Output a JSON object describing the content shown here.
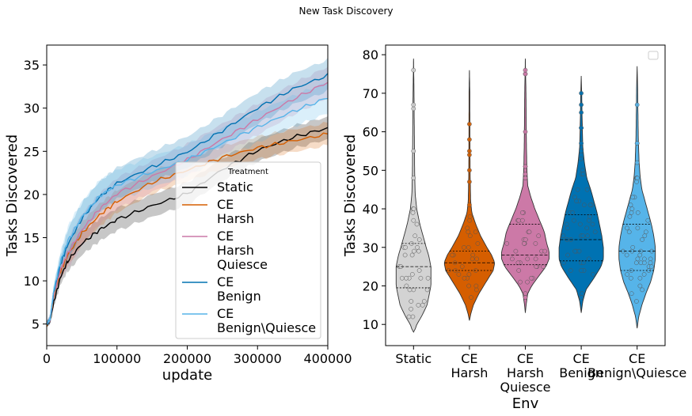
{
  "figure_title": "New Task Discovery",
  "chart_data": [
    {
      "type": "line",
      "xlabel": "update",
      "ylabel": "Tasks Discovered",
      "xlim": [
        0,
        400000
      ],
      "ylim": [
        2.5,
        37.3
      ],
      "xticks": [
        0,
        100000,
        200000,
        300000,
        400000
      ],
      "xtick_labels": [
        "0",
        "100000",
        "200000",
        "300000",
        "400000"
      ],
      "yticks": [
        5,
        10,
        15,
        20,
        25,
        30,
        35
      ],
      "ytick_labels": [
        "5",
        "10",
        "15",
        "20",
        "25",
        "30",
        "35"
      ],
      "grid": false,
      "legend": {
        "title": "Treatment",
        "placement": "lower-right",
        "entries": [
          {
            "lines": [
              "Static"
            ],
            "color": "#000000"
          },
          {
            "lines": [
              "CE",
              "Harsh"
            ],
            "color": "#d55e00"
          },
          {
            "lines": [
              "CE",
              "Harsh",
              "Quiesce"
            ],
            "color": "#cc79a7"
          },
          {
            "lines": [
              "CE",
              "Benign"
            ],
            "color": "#0072b2"
          },
          {
            "lines": [
              "CE",
              "Benign\\Quiesce"
            ],
            "color": "#56b4e9"
          }
        ]
      },
      "x": [
        0,
        5000,
        10000,
        20000,
        30000,
        50000,
        75000,
        100000,
        150000,
        200000,
        250000,
        300000,
        350000,
        400000
      ],
      "series": [
        {
          "name": "Static",
          "color": "#000000",
          "band": 1.3,
          "values": [
            5,
            5.4,
            7.5,
            10.5,
            12.3,
            14.3,
            15.9,
            17.1,
            18.7,
            20.1,
            22.9,
            25.1,
            26.6,
            27.7
          ]
        },
        {
          "name": "CE Harsh",
          "color": "#d55e00",
          "band": 1.3,
          "values": [
            5,
            5.5,
            8.3,
            11.2,
            13.0,
            15.5,
            17.6,
            19.2,
            21.4,
            22.8,
            24.3,
            25.4,
            26.2,
            27.0
          ]
        },
        {
          "name": "CE Harsh Quiesce",
          "color": "#cc79a7",
          "band": 1.8,
          "values": [
            5,
            5.6,
            8.4,
            11.4,
            13.2,
            15.9,
            18.3,
            20.1,
            22.1,
            24.0,
            26.4,
            28.7,
            31.0,
            33.0
          ]
        },
        {
          "name": "CE Benign",
          "color": "#0072b2",
          "band": 1.8,
          "values": [
            5,
            5.6,
            8.7,
            12.0,
            14.2,
            17.2,
            19.7,
            21.3,
            23.2,
            24.9,
            27.4,
            30.0,
            32.2,
            33.8
          ]
        },
        {
          "name": "CE Benign\\Quiesce",
          "color": "#56b4e9",
          "band": 1.8,
          "values": [
            5,
            5.6,
            8.9,
            12.4,
            14.6,
            17.4,
            19.8,
            21.1,
            22.6,
            24.0,
            25.9,
            27.8,
            29.6,
            31.2
          ]
        }
      ]
    },
    {
      "type": "violin",
      "xlabel": "Env",
      "ylabel": "Tasks Discovered",
      "ylim": [
        4.5,
        82.5
      ],
      "yticks": [
        10,
        20,
        30,
        40,
        50,
        60,
        70,
        80
      ],
      "ytick_labels": [
        "10",
        "20",
        "30",
        "40",
        "50",
        "60",
        "70",
        "80"
      ],
      "grid": false,
      "legend": {
        "placement": "top-right",
        "entries": []
      },
      "categories": [
        {
          "lines": [
            "Static"
          ],
          "color": "#d3d3d3",
          "min": 8,
          "max": 79,
          "q1": 19.5,
          "median": 25,
          "q3": 31,
          "profile": [
            [
              8,
              1
            ],
            [
              10,
              4
            ],
            [
              12,
              10
            ],
            [
              15,
              17
            ],
            [
              18,
              20
            ],
            [
              20,
              22
            ],
            [
              22,
              22
            ],
            [
              25,
              22
            ],
            [
              28,
              19
            ],
            [
              30,
              16
            ],
            [
              33,
              12
            ],
            [
              36,
              8
            ],
            [
              40,
              4
            ],
            [
              44,
              2
            ],
            [
              50,
              1.4
            ],
            [
              60,
              1
            ],
            [
              70,
              0.6
            ],
            [
              79,
              0
            ]
          ]
        },
        {
          "lines": [
            "CE",
            "Harsh"
          ],
          "color": "#d55e00",
          "min": 11,
          "max": 76,
          "q1": 24,
          "median": 26,
          "q3": 29,
          "profile": [
            [
              11,
              0
            ],
            [
              13,
              2
            ],
            [
              15,
              5
            ],
            [
              18,
              12
            ],
            [
              20,
              18
            ],
            [
              22,
              24
            ],
            [
              24,
              30
            ],
            [
              26,
              32
            ],
            [
              28,
              28
            ],
            [
              30,
              22
            ],
            [
              33,
              14
            ],
            [
              36,
              8
            ],
            [
              39,
              3
            ],
            [
              42,
              1.5
            ],
            [
              50,
              0.8
            ],
            [
              60,
              0.6
            ],
            [
              70,
              0.5
            ],
            [
              76,
              0
            ]
          ]
        },
        {
          "lines": [
            "CE",
            "Harsh",
            "Quiesce"
          ],
          "color": "#cc79a7",
          "min": 13,
          "max": 79,
          "q1": 25.5,
          "median": 28,
          "q3": 36,
          "profile": [
            [
              13,
              0
            ],
            [
              15,
              1
            ],
            [
              18,
              3
            ],
            [
              20,
              8
            ],
            [
              22,
              15
            ],
            [
              25,
              26
            ],
            [
              27,
              30
            ],
            [
              29,
              30
            ],
            [
              31,
              27
            ],
            [
              34,
              24
            ],
            [
              37,
              18
            ],
            [
              40,
              12
            ],
            [
              43,
              7
            ],
            [
              46,
              3
            ],
            [
              50,
              2
            ],
            [
              55,
              1.5
            ],
            [
              60,
              1.2
            ],
            [
              70,
              0.8
            ],
            [
              79,
              0
            ]
          ]
        },
        {
          "lines": [
            "CE",
            "Benign"
          ],
          "color": "#0072b2",
          "min": 13,
          "max": 74.5,
          "q1": 26.5,
          "median": 32,
          "q3": 38.5,
          "profile": [
            [
              13,
              0
            ],
            [
              16,
              2
            ],
            [
              19,
              6
            ],
            [
              22,
              16
            ],
            [
              25,
              25
            ],
            [
              27,
              28
            ],
            [
              30,
              28
            ],
            [
              33,
              26
            ],
            [
              36,
              23
            ],
            [
              39,
              20
            ],
            [
              42,
              16
            ],
            [
              45,
              12
            ],
            [
              48,
              7
            ],
            [
              52,
              4
            ],
            [
              56,
              2
            ],
            [
              60,
              1.5
            ],
            [
              65,
              1
            ],
            [
              70,
              0.6
            ],
            [
              74.5,
              0
            ]
          ]
        },
        {
          "lines": [
            "CE",
            "Benign\\Quiesce"
          ],
          "color": "#56b4e9",
          "min": 9,
          "max": 77,
          "q1": 24,
          "median": 29,
          "q3": 36,
          "profile": [
            [
              9,
              0
            ],
            [
              12,
              2
            ],
            [
              15,
              6
            ],
            [
              18,
              11
            ],
            [
              21,
              17
            ],
            [
              24,
              21
            ],
            [
              27,
              23
            ],
            [
              30,
              23
            ],
            [
              33,
              21
            ],
            [
              36,
              18
            ],
            [
              39,
              14
            ],
            [
              42,
              10
            ],
            [
              45,
              6
            ],
            [
              48,
              4
            ],
            [
              52,
              2.5
            ],
            [
              58,
              1.5
            ],
            [
              65,
              1
            ],
            [
              72,
              0.6
            ],
            [
              77,
              0
            ]
          ]
        }
      ]
    }
  ]
}
